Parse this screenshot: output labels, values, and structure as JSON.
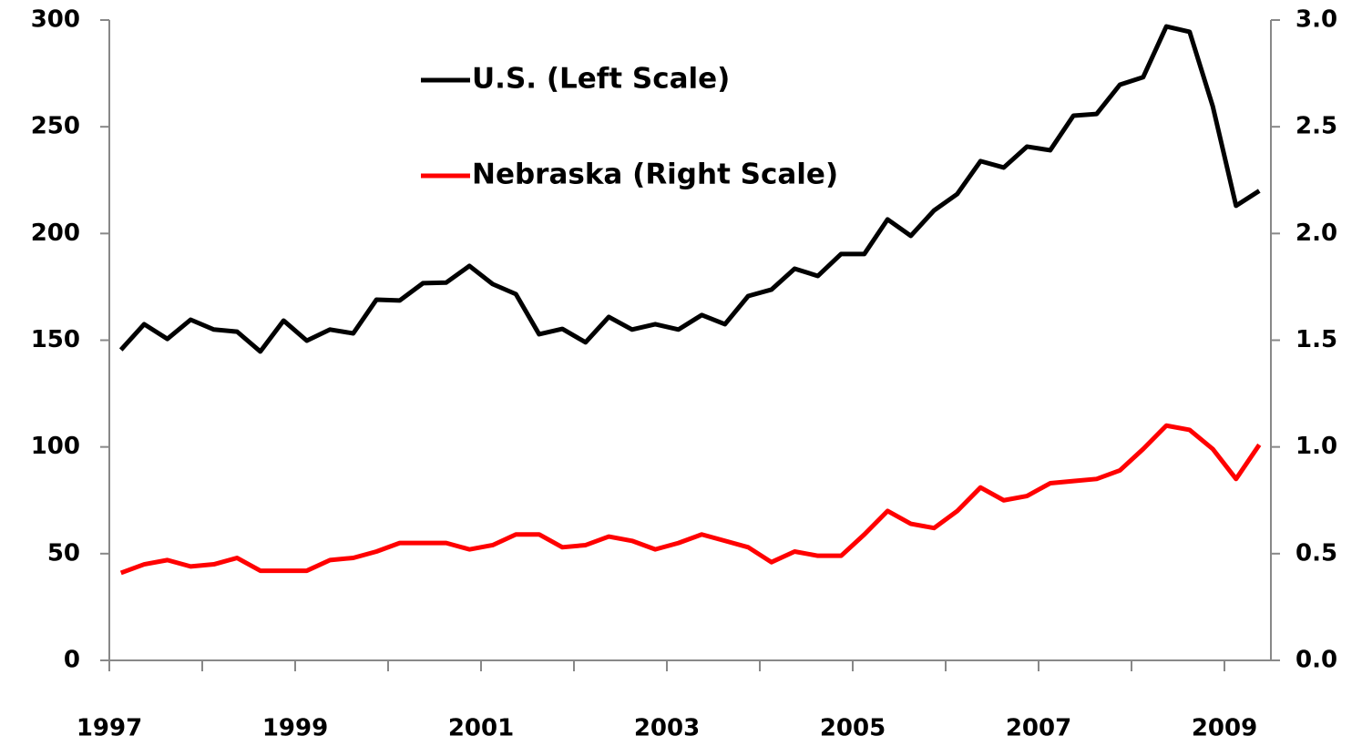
{
  "chart_data": {
    "type": "line",
    "x": [
      1997.125,
      1997.375,
      1997.625,
      1997.875,
      1998.125,
      1998.375,
      1998.625,
      1998.875,
      1999.125,
      1999.375,
      1999.625,
      1999.875,
      2000.125,
      2000.375,
      2000.625,
      2000.875,
      2001.125,
      2001.375,
      2001.625,
      2001.875,
      2002.125,
      2002.375,
      2002.625,
      2002.875,
      2003.125,
      2003.375,
      2003.625,
      2003.875,
      2004.125,
      2004.375,
      2004.625,
      2004.875,
      2005.125,
      2005.375,
      2005.625,
      2005.875,
      2006.125,
      2006.375,
      2006.625,
      2006.875,
      2007.125,
      2007.375,
      2007.625,
      2007.875,
      2008.125,
      2008.375,
      2008.625,
      2008.875,
      2009.125,
      2009.375
    ],
    "series": [
      {
        "name": "U.S. (Left Scale)",
        "color": "#000000",
        "axis": "y",
        "values": [
          145.5,
          157.5,
          150.6,
          159.6,
          155,
          154,
          144.7,
          159.2,
          149.8,
          155,
          153.2,
          169,
          168.6,
          176.7,
          177,
          184.8,
          176.3,
          171.6,
          152.8,
          155.3,
          149,
          160.9,
          155,
          157.5,
          155,
          161.8,
          157.5,
          170.7,
          173.7,
          183.5,
          180.1,
          190.4,
          190.4,
          206.6,
          198.9,
          210.8,
          218.5,
          233.9,
          230.9,
          240.7,
          239,
          255.2,
          256,
          269.7,
          273.2,
          297,
          294.5,
          259.5,
          213,
          220
        ]
      },
      {
        "name": "Nebraska (Right Scale)",
        "color": "#ff0000",
        "axis": "y2",
        "values": [
          0.41,
          0.45,
          0.47,
          0.44,
          0.45,
          0.48,
          0.42,
          0.42,
          0.42,
          0.47,
          0.48,
          0.51,
          0.55,
          0.55,
          0.55,
          0.52,
          0.54,
          0.59,
          0.59,
          0.53,
          0.54,
          0.58,
          0.56,
          0.52,
          0.55,
          0.59,
          0.56,
          0.53,
          0.46,
          0.51,
          0.49,
          0.49,
          0.59,
          0.7,
          0.64,
          0.62,
          0.7,
          0.81,
          0.75,
          0.77,
          0.83,
          0.84,
          0.85,
          0.89,
          0.99,
          1.1,
          1.08,
          0.99,
          0.85,
          1.01
        ]
      }
    ],
    "xlim": [
      1997,
      2009.5
    ],
    "xticks": [
      1997,
      1999,
      2001,
      2003,
      2005,
      2007,
      2009
    ],
    "x_minor_ticks": [
      1998,
      2000,
      2002,
      2004,
      2006,
      2008
    ],
    "ylim": [
      0,
      300
    ],
    "yticks": [
      0,
      50,
      100,
      150,
      200,
      250,
      300
    ],
    "y2lim": [
      0,
      3
    ],
    "y2ticks": [
      {
        "value": 0,
        "label": "0.0"
      },
      0.5,
      {
        "value": 1,
        "label": "1.0"
      },
      1.5,
      {
        "value": 2,
        "label": "2.0"
      },
      2.5,
      {
        "value": 3,
        "label": "3.0"
      }
    ],
    "legend": "upper left",
    "grid": false
  }
}
